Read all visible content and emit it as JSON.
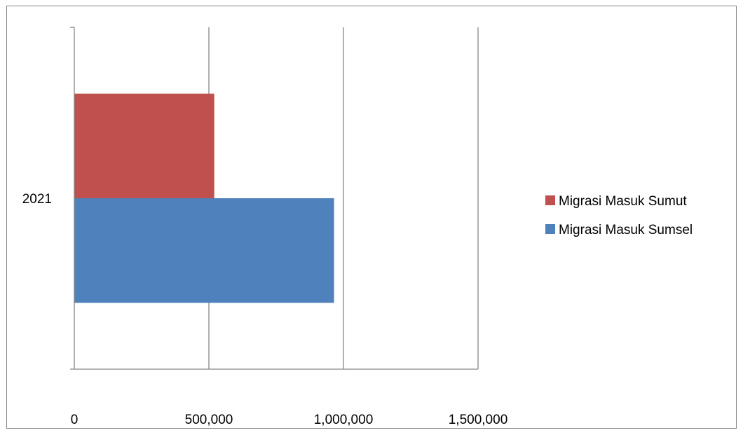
{
  "chart_data": {
    "type": "bar",
    "orientation": "horizontal",
    "categories": [
      "2021"
    ],
    "series": [
      {
        "name": "Migrasi Masuk Sumsel",
        "values": [
          965000
        ],
        "color": "#4F81BD"
      },
      {
        "name": "Migrasi Masuk Sumut",
        "values": [
          520000
        ],
        "color": "#C0504D"
      }
    ],
    "x_ticks": [
      "0",
      "500,000",
      "1,000,000",
      "1,500,000"
    ],
    "xlim": [
      0,
      1500000
    ],
    "grid": true,
    "legend_position": "right",
    "title": "",
    "xlabel": "",
    "ylabel": ""
  }
}
